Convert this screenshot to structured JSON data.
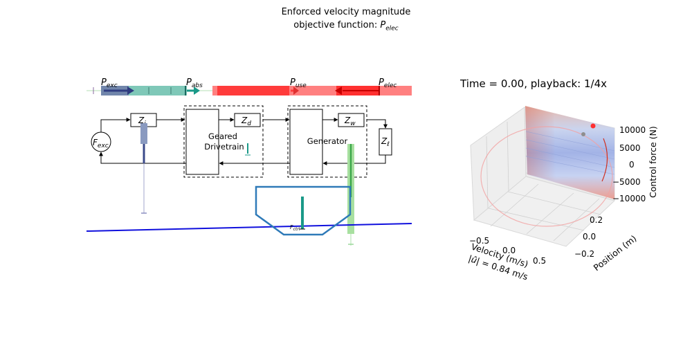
{
  "title": {
    "line1": "Enforced velocity magnitude",
    "line2_prefix": "objective function: ",
    "line2_symbol": "P",
    "line2_sub": "elec"
  },
  "power_bar": {
    "labels": [
      {
        "symbol": "P",
        "sub": "exc"
      },
      {
        "symbol": "P",
        "sub": "abs"
      },
      {
        "symbol": "P",
        "sub": "use"
      },
      {
        "symbol": "P",
        "sub": "elec"
      }
    ]
  },
  "blocks": {
    "source": {
      "symbol": "F",
      "sub": "exc"
    },
    "z_i": {
      "symbol": "Z",
      "sub": "i"
    },
    "drivetrain": {
      "line1": "Geared",
      "line2": "Drivetrain"
    },
    "z_d": {
      "symbol": "Z",
      "sub": "d"
    },
    "generator": "Generator",
    "z_w": {
      "symbol": "Z",
      "sub": "w"
    },
    "z_l": {
      "symbol": "Z",
      "sub": "ℓ"
    }
  },
  "wec": {
    "force_label": "F",
    "force_sub": "ctrl"
  },
  "plot3d": {
    "time_label": "Time = 0.00, playback: 1/4x",
    "xlabel": "Velocity (m/s)",
    "ylabel": "Position (m)",
    "zlabel": "Control force (N)",
    "xticks": [
      "−0.5",
      "0.0",
      "0.5"
    ],
    "yticks": [
      "0.2",
      "0.0",
      "−0.2"
    ],
    "zticks": [
      "10000",
      "5000",
      "0",
      "−5000",
      "−10000"
    ],
    "velocity_readout_prefix": "|",
    "velocity_readout_symbol": "û",
    "velocity_readout_suffix": "| =  0.84 m/s"
  },
  "colors": {
    "teal": "#1a9988",
    "red": "#ff2a2a",
    "navy": "#3b4a8a",
    "green": "#6fd07a",
    "blue_wave": "#1010dd",
    "wec_blue": "#2e7ab8"
  }
}
